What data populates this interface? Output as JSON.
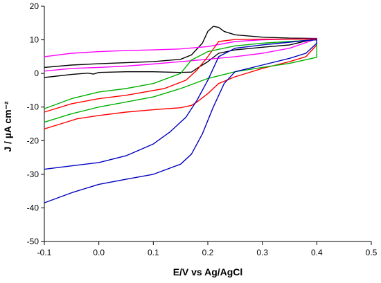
{
  "chart_data": {
    "type": "line",
    "title": "",
    "xlabel": "E/V vs Ag/AgCl",
    "ylabel": "J / µA cm⁻²",
    "xlim": [
      -0.1,
      0.5
    ],
    "ylim": [
      -50,
      20
    ],
    "xticks": [
      -0.1,
      0.0,
      0.1,
      0.2,
      0.3,
      0.4,
      0.5
    ],
    "xtick_labels": [
      "-0.1",
      "0.0",
      "0.1",
      "0.2",
      "0.3",
      "0.4",
      "0.5"
    ],
    "yticks": [
      -50,
      -40,
      -30,
      -20,
      -10,
      0,
      10,
      20
    ],
    "ytick_labels": [
      "-50",
      "-40",
      "-30",
      "-20",
      "-10",
      "0",
      "10",
      "20"
    ],
    "grid": false,
    "legend": "none",
    "series": [
      {
        "color": "#000000",
        "points": [
          [
            -0.1,
            1.8
          ],
          [
            -0.05,
            2.5
          ],
          [
            0.0,
            2.9
          ],
          [
            0.05,
            3.2
          ],
          [
            0.1,
            3.5
          ],
          [
            0.15,
            4.2
          ],
          [
            0.17,
            5.5
          ],
          [
            0.19,
            9
          ],
          [
            0.2,
            12.5
          ],
          [
            0.21,
            14
          ],
          [
            0.22,
            13.7
          ],
          [
            0.23,
            12.5
          ],
          [
            0.25,
            11.5
          ],
          [
            0.3,
            10.8
          ],
          [
            0.35,
            10.5
          ],
          [
            0.4,
            10.4
          ],
          [
            0.35,
            8.5
          ],
          [
            0.3,
            7.8
          ],
          [
            0.25,
            7
          ],
          [
            0.22,
            6
          ],
          [
            0.2,
            3.5
          ],
          [
            0.18,
            1.5
          ],
          [
            0.17,
            0.4
          ],
          [
            0.15,
            0.3
          ],
          [
            0.1,
            0.5
          ],
          [
            0.05,
            0.5
          ],
          [
            0.0,
            0.3
          ],
          [
            -0.01,
            -0.2
          ],
          [
            -0.02,
            0.1
          ],
          [
            -0.05,
            -0.3
          ],
          [
            -0.1,
            -1.2
          ]
        ]
      },
      {
        "color": "#ff00ff",
        "points": [
          [
            -0.1,
            5
          ],
          [
            -0.05,
            6
          ],
          [
            0.0,
            6.5
          ],
          [
            0.05,
            6.8
          ],
          [
            0.1,
            7
          ],
          [
            0.15,
            7.3
          ],
          [
            0.2,
            8
          ],
          [
            0.25,
            9.5
          ],
          [
            0.3,
            10
          ],
          [
            0.35,
            10.2
          ],
          [
            0.4,
            10.3
          ],
          [
            0.35,
            7.5
          ],
          [
            0.3,
            6
          ],
          [
            0.25,
            5
          ],
          [
            0.2,
            4.2
          ],
          [
            0.15,
            3.5
          ],
          [
            0.1,
            2.8
          ],
          [
            0.05,
            2.2
          ],
          [
            0.0,
            1.8
          ],
          [
            -0.05,
            1.5
          ],
          [
            -0.1,
            0.7
          ]
        ]
      },
      {
        "color": "#ff0000",
        "points": [
          [
            -0.1,
            -16.5
          ],
          [
            -0.07,
            -15
          ],
          [
            -0.04,
            -13.5
          ],
          [
            -0.02,
            -13
          ],
          [
            0.0,
            -12.5
          ],
          [
            0.05,
            -11.5
          ],
          [
            0.1,
            -10.8
          ],
          [
            0.15,
            -10.2
          ],
          [
            0.17,
            -9.5
          ],
          [
            0.18,
            -8.5
          ],
          [
            0.2,
            -6
          ],
          [
            0.22,
            -3
          ],
          [
            0.25,
            -1
          ],
          [
            0.3,
            1.5
          ],
          [
            0.35,
            3.5
          ],
          [
            0.38,
            5
          ],
          [
            0.4,
            8.5
          ],
          [
            0.4,
            10.2
          ],
          [
            0.38,
            10.2
          ],
          [
            0.35,
            10.2
          ],
          [
            0.3,
            10.2
          ],
          [
            0.25,
            10.1
          ],
          [
            0.22,
            9.5
          ],
          [
            0.2,
            5
          ],
          [
            0.18,
            1
          ],
          [
            0.16,
            -2
          ],
          [
            0.12,
            -4.5
          ],
          [
            0.05,
            -6.5
          ],
          [
            0.0,
            -7.5
          ],
          [
            -0.05,
            -9
          ],
          [
            -0.1,
            -11.5
          ]
        ]
      },
      {
        "color": "#00b000",
        "points": [
          [
            -0.1,
            -14.5
          ],
          [
            -0.05,
            -12
          ],
          [
            0.0,
            -10
          ],
          [
            0.05,
            -8.5
          ],
          [
            0.1,
            -7
          ],
          [
            0.15,
            -4.5
          ],
          [
            0.2,
            -1.5
          ],
          [
            0.25,
            0.5
          ],
          [
            0.3,
            1.8
          ],
          [
            0.35,
            3
          ],
          [
            0.4,
            4.8
          ],
          [
            0.4,
            10
          ],
          [
            0.35,
            9.5
          ],
          [
            0.3,
            9
          ],
          [
            0.25,
            8.2
          ],
          [
            0.2,
            6.5
          ],
          [
            0.17,
            4
          ],
          [
            0.15,
            0
          ],
          [
            0.1,
            -3
          ],
          [
            0.05,
            -4.5
          ],
          [
            0.0,
            -5.5
          ],
          [
            -0.05,
            -7.5
          ],
          [
            -0.1,
            -10.5
          ]
        ]
      },
      {
        "color": "#0000c0",
        "points": [
          [
            -0.1,
            -38.5
          ],
          [
            -0.05,
            -35.5
          ],
          [
            0.0,
            -33
          ],
          [
            0.05,
            -31.5
          ],
          [
            0.1,
            -30
          ],
          [
            0.15,
            -27
          ],
          [
            0.17,
            -24
          ],
          [
            0.19,
            -18
          ],
          [
            0.21,
            -10
          ],
          [
            0.23,
            -3
          ],
          [
            0.25,
            0.5
          ],
          [
            0.3,
            2.5
          ],
          [
            0.35,
            4.5
          ],
          [
            0.38,
            6
          ],
          [
            0.4,
            9
          ],
          [
            0.4,
            10
          ],
          [
            0.38,
            9.8
          ],
          [
            0.35,
            9.3
          ],
          [
            0.3,
            8.5
          ],
          [
            0.25,
            7.5
          ],
          [
            0.22,
            5
          ],
          [
            0.2,
            -2
          ],
          [
            0.18,
            -8
          ],
          [
            0.16,
            -13
          ],
          [
            0.13,
            -17.5
          ],
          [
            0.1,
            -21
          ],
          [
            0.05,
            -24.5
          ],
          [
            0.0,
            -26.5
          ],
          [
            -0.05,
            -27.5
          ],
          [
            -0.1,
            -28.5
          ]
        ]
      }
    ]
  }
}
